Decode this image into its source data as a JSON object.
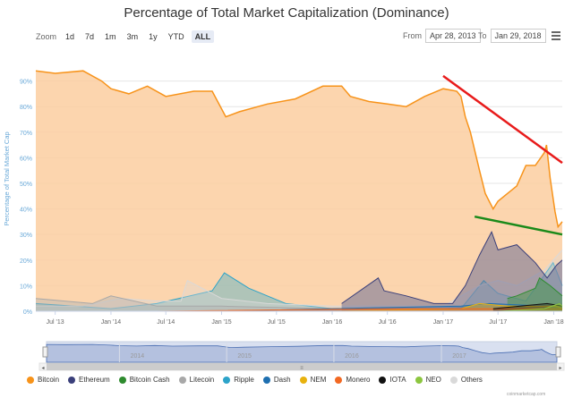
{
  "chart_data": {
    "type": "area",
    "title": "Percentage of Total Market Capitalization (Dominance)",
    "ylabel": "Percentage of Total Market Cap",
    "ylim": [
      0,
      100
    ],
    "y_ticks": [
      "0%",
      "10%",
      "20%",
      "30%",
      "40%",
      "50%",
      "60%",
      "70%",
      "80%",
      "90%"
    ],
    "x_ticks": [
      "Jul '13",
      "Jan '14",
      "Jul '14",
      "Jan '15",
      "Jul '15",
      "Jan '16",
      "Jul '16",
      "Jan '17",
      "Jul '17",
      "Jan '18"
    ],
    "x_range": [
      "2013-04-28",
      "2018-01-29"
    ],
    "grid": true,
    "legend_position": "bottom",
    "series": [
      {
        "name": "Bitcoin",
        "color": "#f7931a",
        "x": [
          "2013-04-28",
          "2013-07-01",
          "2013-10-01",
          "2013-12-01",
          "2014-01-01",
          "2014-03-01",
          "2014-05-01",
          "2014-07-01",
          "2014-10-01",
          "2014-12-01",
          "2015-01-15",
          "2015-03-01",
          "2015-06-01",
          "2015-09-01",
          "2015-12-01",
          "2016-02-01",
          "2016-03-01",
          "2016-05-01",
          "2016-07-01",
          "2016-09-01",
          "2016-11-01",
          "2017-01-01",
          "2017-02-15",
          "2017-03-01",
          "2017-03-15",
          "2017-04-01",
          "2017-05-01",
          "2017-05-20",
          "2017-06-15",
          "2017-07-01",
          "2017-08-01",
          "2017-09-01",
          "2017-10-01",
          "2017-11-01",
          "2017-12-01",
          "2017-12-08",
          "2017-12-20",
          "2018-01-05",
          "2018-01-15",
          "2018-01-29"
        ],
        "values": [
          94,
          93,
          94,
          90,
          87,
          85,
          88,
          84,
          86,
          86,
          76,
          78,
          81,
          83,
          88,
          88,
          84,
          82,
          81,
          80,
          84,
          87,
          86,
          84,
          76,
          70,
          55,
          46,
          40,
          43,
          46,
          49,
          57,
          57,
          62,
          65,
          52,
          39,
          33,
          35
        ]
      },
      {
        "name": "Ethereum",
        "color": "#3a3f7a",
        "x": [
          "2016-02-01",
          "2016-06-01",
          "2016-06-20",
          "2016-09-01",
          "2016-12-01",
          "2017-02-01",
          "2017-03-15",
          "2017-05-01",
          "2017-06-10",
          "2017-07-01",
          "2017-09-01",
          "2017-11-01",
          "2017-12-10",
          "2018-01-10",
          "2018-01-29"
        ],
        "values": [
          3,
          13,
          8,
          6,
          3,
          3,
          10,
          22,
          31,
          24,
          26,
          19,
          13,
          18,
          20
        ]
      },
      {
        "name": "Bitcoin Cash",
        "color": "#2e8b2e",
        "x": [
          "2017-08-01",
          "2017-09-01",
          "2017-11-01",
          "2017-11-15",
          "2017-12-20",
          "2018-01-29"
        ],
        "values": [
          5,
          6,
          9,
          13,
          10,
          6
        ]
      },
      {
        "name": "Litecoin",
        "color": "#a8a8a8",
        "x": [
          "2013-04-28",
          "2013-11-01",
          "2014-01-01",
          "2014-06-01",
          "2015-01-01",
          "2016-01-01",
          "2017-01-01",
          "2017-05-01",
          "2017-09-01",
          "2017-12-15",
          "2018-01-29"
        ],
        "values": [
          5,
          3,
          6,
          2,
          2,
          1,
          1,
          2,
          2,
          3,
          3
        ]
      },
      {
        "name": "Ripple",
        "color": "#2ca3c9",
        "x": [
          "2013-04-28",
          "2013-09-01",
          "2014-01-01",
          "2014-06-01",
          "2014-12-01",
          "2015-01-10",
          "2015-04-01",
          "2015-08-01",
          "2016-01-01",
          "2016-08-01",
          "2017-03-01",
          "2017-05-15",
          "2017-07-01",
          "2017-10-01",
          "2017-12-30",
          "2018-01-29"
        ],
        "values": [
          3,
          2,
          1,
          3,
          8,
          15,
          9,
          3,
          1,
          1,
          1,
          12,
          7,
          4,
          19,
          10
        ]
      },
      {
        "name": "Dash",
        "color": "#1e6fb0",
        "x": [
          "2015-01-01",
          "2016-01-01",
          "2017-03-01",
          "2017-06-01",
          "2017-12-01",
          "2018-01-29"
        ],
        "values": [
          0,
          1,
          2,
          3,
          2,
          1
        ]
      },
      {
        "name": "NEM",
        "color": "#e8b20e",
        "x": [
          "2016-01-01",
          "2017-03-01",
          "2017-05-01",
          "2017-08-01",
          "2018-01-10",
          "2018-01-29"
        ],
        "values": [
          0,
          1,
          3,
          2,
          2,
          1
        ]
      },
      {
        "name": "Monero",
        "color": "#f26822",
        "x": [
          "2014-06-01",
          "2016-08-01",
          "2017-06-01",
          "2018-01-29"
        ],
        "values": [
          0,
          1,
          1,
          1
        ]
      },
      {
        "name": "IOTA",
        "color": "#111111",
        "x": [
          "2017-06-15",
          "2017-12-10",
          "2018-01-29"
        ],
        "values": [
          1,
          3,
          2
        ]
      },
      {
        "name": "NEO",
        "color": "#8cc63f",
        "x": [
          "2017-07-01",
          "2017-12-01",
          "2018-01-20",
          "2018-01-29"
        ],
        "values": [
          0,
          1,
          3,
          2
        ]
      },
      {
        "name": "Others",
        "color": "#d9d9d9",
        "x": [
          "2013-04-28",
          "2013-10-01",
          "2014-02-01",
          "2014-06-01",
          "2014-08-20",
          "2014-09-10",
          "2015-01-01",
          "2015-06-01",
          "2016-01-01",
          "2016-08-01",
          "2017-01-01",
          "2017-05-01",
          "2017-07-01",
          "2017-09-01",
          "2017-12-01",
          "2018-01-29"
        ],
        "values": [
          2,
          2,
          5,
          4,
          4,
          12,
          5,
          3,
          2,
          2,
          2,
          10,
          12,
          10,
          16,
          24
        ]
      }
    ],
    "annotations": [
      {
        "type": "trend-line",
        "color": "#e81b1b",
        "from": {
          "x": "2017-01-01",
          "y": 92
        },
        "to": {
          "x": "2018-01-29",
          "y": 58
        }
      },
      {
        "type": "trend-line",
        "color": "#1a8a1a",
        "from": {
          "x": "2017-04-15",
          "y": 37
        },
        "to": {
          "x": "2018-01-29",
          "y": 30
        }
      }
    ]
  },
  "toolbar": {
    "zoom_label": "Zoom",
    "zoom_options": [
      "1d",
      "7d",
      "1m",
      "3m",
      "1y",
      "YTD",
      "ALL"
    ],
    "from_label": "From",
    "from_value": "Apr 28, 2013",
    "to_label": "To",
    "to_value": "Jan 29, 2018"
  },
  "navigator": {
    "year_labels": [
      "2014",
      "2015",
      "2016",
      "2017"
    ]
  },
  "credit": "coinmarketcap.com"
}
